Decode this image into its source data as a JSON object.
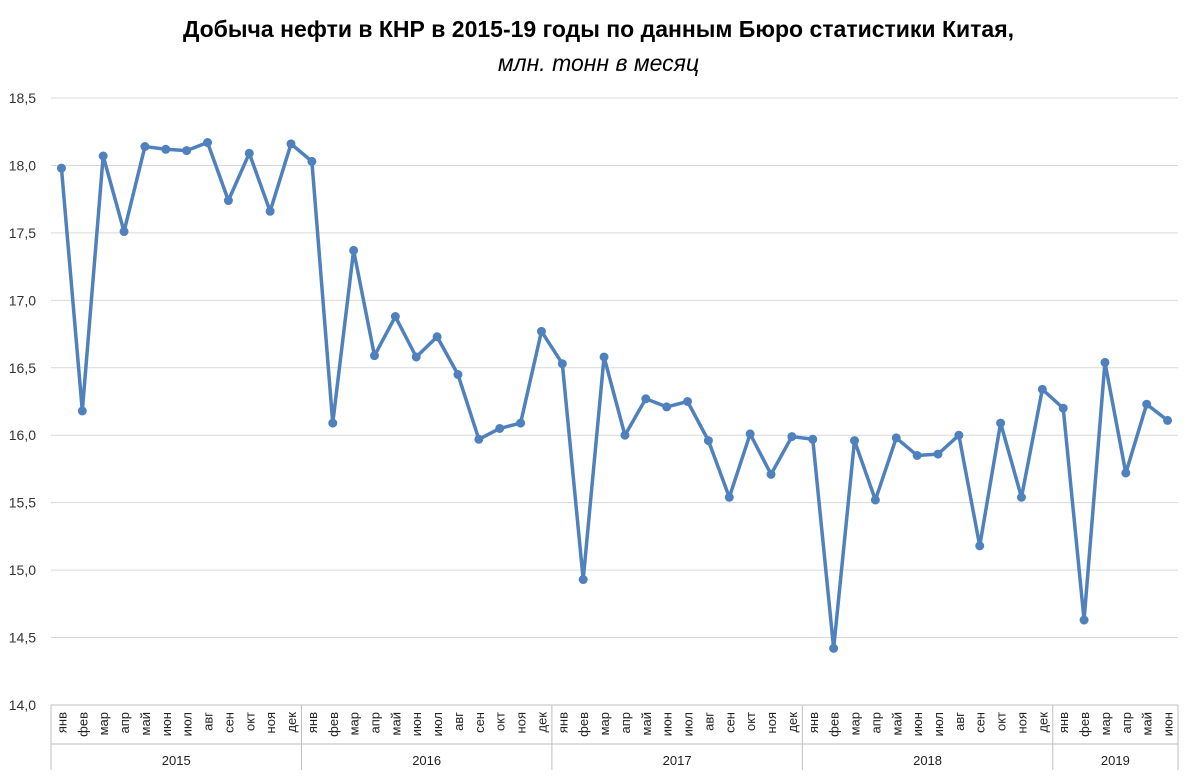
{
  "chart_data": {
    "type": "line",
    "title": "Добыча нефти в КНР в 2015-19 годы по данным Бюро статистики Китая,",
    "subtitle": "млн. тонн в месяц",
    "xlabel": "",
    "ylabel": "",
    "ylim": [
      14.0,
      18.5
    ],
    "yticks": [
      "14,0",
      "14,5",
      "15,0",
      "15,5",
      "16,0",
      "16,5",
      "17,0",
      "17,5",
      "18,0",
      "18,5"
    ],
    "ytick_values": [
      14.0,
      14.5,
      15.0,
      15.5,
      16.0,
      16.5,
      17.0,
      17.5,
      18.0,
      18.5
    ],
    "grid": true,
    "legend": "none",
    "color": "#4f81bd",
    "years": [
      {
        "label": "2015",
        "count": 12
      },
      {
        "label": "2016",
        "count": 12
      },
      {
        "label": "2017",
        "count": 12
      },
      {
        "label": "2018",
        "count": 12
      },
      {
        "label": "2019",
        "count": 6
      }
    ],
    "categories": [
      "янв",
      "фев",
      "мар",
      "апр",
      "май",
      "июн",
      "июл",
      "авг",
      "сен",
      "окт",
      "ноя",
      "дек",
      "янв",
      "фев",
      "мар",
      "апр",
      "май",
      "июн",
      "июл",
      "авг",
      "сен",
      "окт",
      "ноя",
      "дек",
      "янв",
      "фев",
      "мар",
      "апр",
      "май",
      "июн",
      "июл",
      "авг",
      "сен",
      "окт",
      "ноя",
      "дек",
      "янв",
      "фев",
      "мар",
      "апр",
      "май",
      "июн",
      "июл",
      "авг",
      "сен",
      "окт",
      "ноя",
      "дек",
      "янв",
      "фев",
      "мар",
      "апр",
      "май",
      "июн"
    ],
    "values": [
      17.98,
      16.18,
      18.07,
      17.51,
      18.14,
      18.12,
      18.11,
      18.17,
      17.74,
      18.09,
      17.66,
      18.16,
      18.03,
      16.09,
      17.37,
      16.59,
      16.88,
      16.58,
      16.73,
      16.45,
      15.97,
      16.05,
      16.09,
      16.77,
      16.53,
      14.93,
      16.58,
      16.0,
      16.27,
      16.21,
      16.25,
      15.96,
      15.54,
      16.01,
      15.71,
      15.99,
      15.97,
      14.42,
      15.96,
      15.52,
      15.98,
      15.85,
      15.86,
      16.0,
      15.18,
      16.09,
      15.54,
      16.34,
      16.2,
      14.63,
      16.54,
      15.72,
      16.23,
      16.11
    ]
  }
}
